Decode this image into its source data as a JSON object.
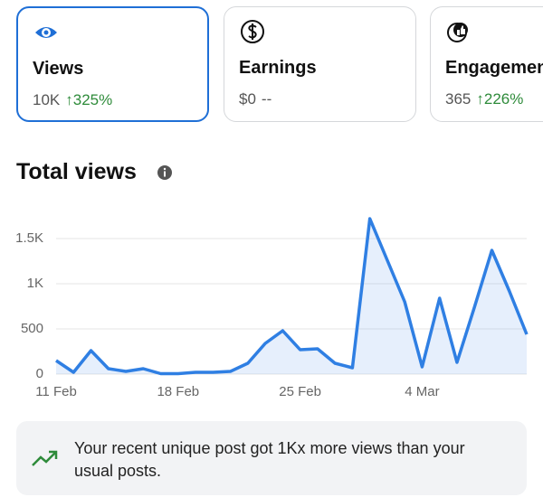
{
  "cards": [
    {
      "label": "Views",
      "value": "10K",
      "change": "↑325%"
    },
    {
      "label": "Earnings",
      "value": "$0",
      "change": "--"
    },
    {
      "label": "Engagement",
      "value": "365",
      "change": "↑226%"
    }
  ],
  "chart_data": {
    "type": "line",
    "title": "Total views",
    "categories": [
      "11 Feb",
      null,
      null,
      null,
      null,
      null,
      null,
      "18 Feb",
      null,
      null,
      null,
      null,
      null,
      null,
      "25 Feb",
      null,
      null,
      null,
      null,
      null,
      null,
      "4 Mar",
      null,
      null,
      null,
      null,
      null,
      null
    ],
    "series": [
      {
        "name": "Views",
        "color": "#2f7fe3",
        "values": [
          150,
          20,
          260,
          60,
          30,
          60,
          5,
          5,
          20,
          20,
          30,
          120,
          340,
          480,
          270,
          280,
          120,
          70,
          1720,
          1260,
          800,
          80,
          840,
          130,
          740,
          1370,
          920,
          440
        ]
      }
    ],
    "ylim": [
      0,
      1720
    ],
    "yticks": [
      0,
      500,
      {
        "value": 1000,
        "label": "1K"
      },
      {
        "value": 1500,
        "label": "1.5K"
      }
    ],
    "grid": true
  },
  "insight": {
    "text": "Your recent unique post got 1Kx more views than your usual posts."
  }
}
